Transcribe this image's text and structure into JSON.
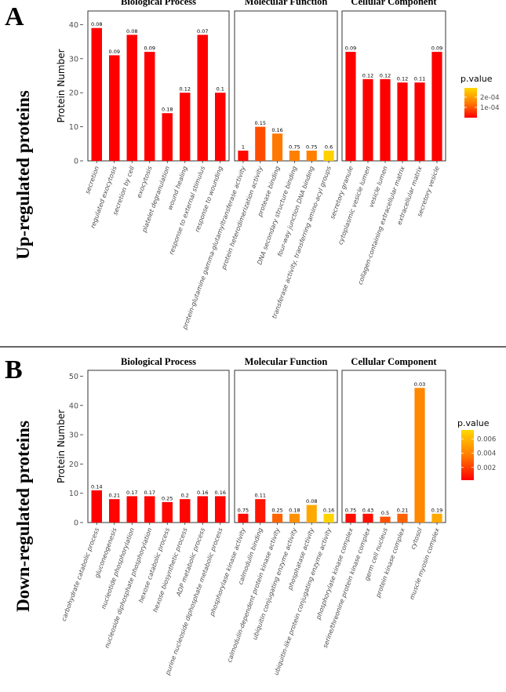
{
  "chart_data": [
    {
      "type": "bar",
      "panel_label": "A",
      "side_title": "Up-regulated proteins",
      "ylabel": "Protein Number",
      "ylim": [
        0,
        44
      ],
      "yticks": [
        0,
        10,
        20,
        30,
        40
      ],
      "legend_title": "p.value",
      "legend_range": [
        5e-07,
        0.00029
      ],
      "legend_ticks": [
        {
          "value": 0.0001,
          "label": "1e-04"
        },
        {
          "value": 0.0002,
          "label": "2e-04"
        }
      ],
      "facets": [
        {
          "title": "Biological Process",
          "bars": [
            {
              "category": "secretion",
              "value": 39,
              "label": "0.08",
              "p": 5e-07
            },
            {
              "category": "regulated exocytosis",
              "value": 31,
              "label": "0.09",
              "p": 5e-07
            },
            {
              "category": "secretion by cell",
              "value": 37,
              "label": "0.08",
              "p": 5e-07
            },
            {
              "category": "exocytosis",
              "value": 32,
              "label": "0.09",
              "p": 5e-07
            },
            {
              "category": "platelet degranulation",
              "value": 14,
              "label": "0.18",
              "p": 5e-07
            },
            {
              "category": "wound healing",
              "value": 20,
              "label": "0.12",
              "p": 5e-07
            },
            {
              "category": "response to external stimulus",
              "value": 37,
              "label": "0.07",
              "p": 5e-07
            },
            {
              "category": "response to wounding",
              "value": 20,
              "label": "0.1",
              "p": 5e-07
            }
          ]
        },
        {
          "title": "Molecular Function",
          "bars": [
            {
              "category": "protein-glutamine gamma-glutamyltransferase activity",
              "value": 3,
              "label": "1",
              "p": 1e-05
            },
            {
              "category": "protein heterodimerization activity",
              "value": 10,
              "label": "0.15",
              "p": 9e-05
            },
            {
              "category": "protease binding",
              "value": 8,
              "label": "0.16",
              "p": 0.00014
            },
            {
              "category": "DNA secondary structure binding",
              "value": 3,
              "label": "0.75",
              "p": 0.00015
            },
            {
              "category": "four-way junction DNA binding",
              "value": 3,
              "label": "0.75",
              "p": 0.00015
            },
            {
              "category": "transferase activity, transferring amino-acyl groups",
              "value": 3,
              "label": "0.6",
              "p": 0.00028
            }
          ]
        },
        {
          "title": "Cellular Component",
          "bars": [
            {
              "category": "secretory granule",
              "value": 32,
              "label": "0.09",
              "p": 5e-07
            },
            {
              "category": "cytoplasmic vesicle lumen",
              "value": 24,
              "label": "0.12",
              "p": 5e-07
            },
            {
              "category": "vesicle lumen",
              "value": 24,
              "label": "0.12",
              "p": 5e-07
            },
            {
              "category": "collagen-containing extracellular matrix",
              "value": 23,
              "label": "0.12",
              "p": 5e-07
            },
            {
              "category": "extracellular matrix",
              "value": 23,
              "label": "0.11",
              "p": 5e-07
            },
            {
              "category": "secretory vesicle",
              "value": 32,
              "label": "0.09",
              "p": 5e-07
            }
          ]
        }
      ]
    },
    {
      "type": "bar",
      "panel_label": "B",
      "side_title": "Down-regulated proteins",
      "ylabel": "Protein Number",
      "ylim": [
        0,
        52
      ],
      "yticks": [
        0,
        10,
        20,
        30,
        40,
        50
      ],
      "legend_title": "p.value",
      "legend_range": [
        0.0002,
        0.0073
      ],
      "legend_ticks": [
        {
          "value": 0.002,
          "label": "0.002"
        },
        {
          "value": 0.004,
          "label": "0.004"
        },
        {
          "value": 0.006,
          "label": "0.006"
        }
      ],
      "facets": [
        {
          "title": "Biological Process",
          "bars": [
            {
              "category": "carbohydrate catabolic process",
              "value": 11,
              "label": "0.14",
              "p": 0.0002
            },
            {
              "category": "gluconeogenesis",
              "value": 8,
              "label": "0.21",
              "p": 0.0003
            },
            {
              "category": "nucleotide phosphorylation",
              "value": 9,
              "label": "0.17",
              "p": 0.0003
            },
            {
              "category": "nucleoside diphosphate phosphorylation",
              "value": 9,
              "label": "0.17",
              "p": 0.0003
            },
            {
              "category": "hexose catabolic process",
              "value": 7,
              "label": "0.25",
              "p": 0.0004
            },
            {
              "category": "hexose biosynthetic process",
              "value": 8,
              "label": "0.2",
              "p": 0.0003
            },
            {
              "category": "ADP metabolic process",
              "value": 9,
              "label": "0.16",
              "p": 0.0003
            },
            {
              "category": "purine nucleoside diphosphate metabolic process",
              "value": 9,
              "label": "0.16",
              "p": 0.0003
            }
          ]
        },
        {
          "title": "Molecular Function",
          "bars": [
            {
              "category": "phosphorylase kinase activity",
              "value": 3,
              "label": "0.75",
              "p": 0.0005
            },
            {
              "category": "calmodulin binding",
              "value": 8,
              "label": "0.11",
              "p": 0.0008
            },
            {
              "category": "calmodulin-dependent protein kinase activity",
              "value": 3,
              "label": "0.25",
              "p": 0.003
            },
            {
              "category": "ubiquitin conjugating enzyme activity",
              "value": 3,
              "label": "0.18",
              "p": 0.0045
            },
            {
              "category": "phosphatase activity",
              "value": 6,
              "label": "0.08",
              "p": 0.0055
            },
            {
              "category": "ubiquitin-like protein conjugating enzyme activity",
              "value": 3,
              "label": "0.16",
              "p": 0.0071
            }
          ]
        },
        {
          "title": "Cellular Component",
          "bars": [
            {
              "category": "phosphorylase kinase complex",
              "value": 3,
              "label": "0.75",
              "p": 0.0005
            },
            {
              "category": "serine/threonine protein kinase complex",
              "value": 3,
              "label": "0.43",
              "p": 0.0006
            },
            {
              "category": "germ cell nucleus",
              "value": 2,
              "label": "0.5",
              "p": 0.0025
            },
            {
              "category": "protein kinase complex",
              "value": 3,
              "label": "0.21",
              "p": 0.003
            },
            {
              "category": "cytosol",
              "value": 46,
              "label": "0.03",
              "p": 0.0042
            },
            {
              "category": "muscle myosin complex",
              "value": 3,
              "label": "0.19",
              "p": 0.0055
            }
          ]
        }
      ]
    }
  ]
}
